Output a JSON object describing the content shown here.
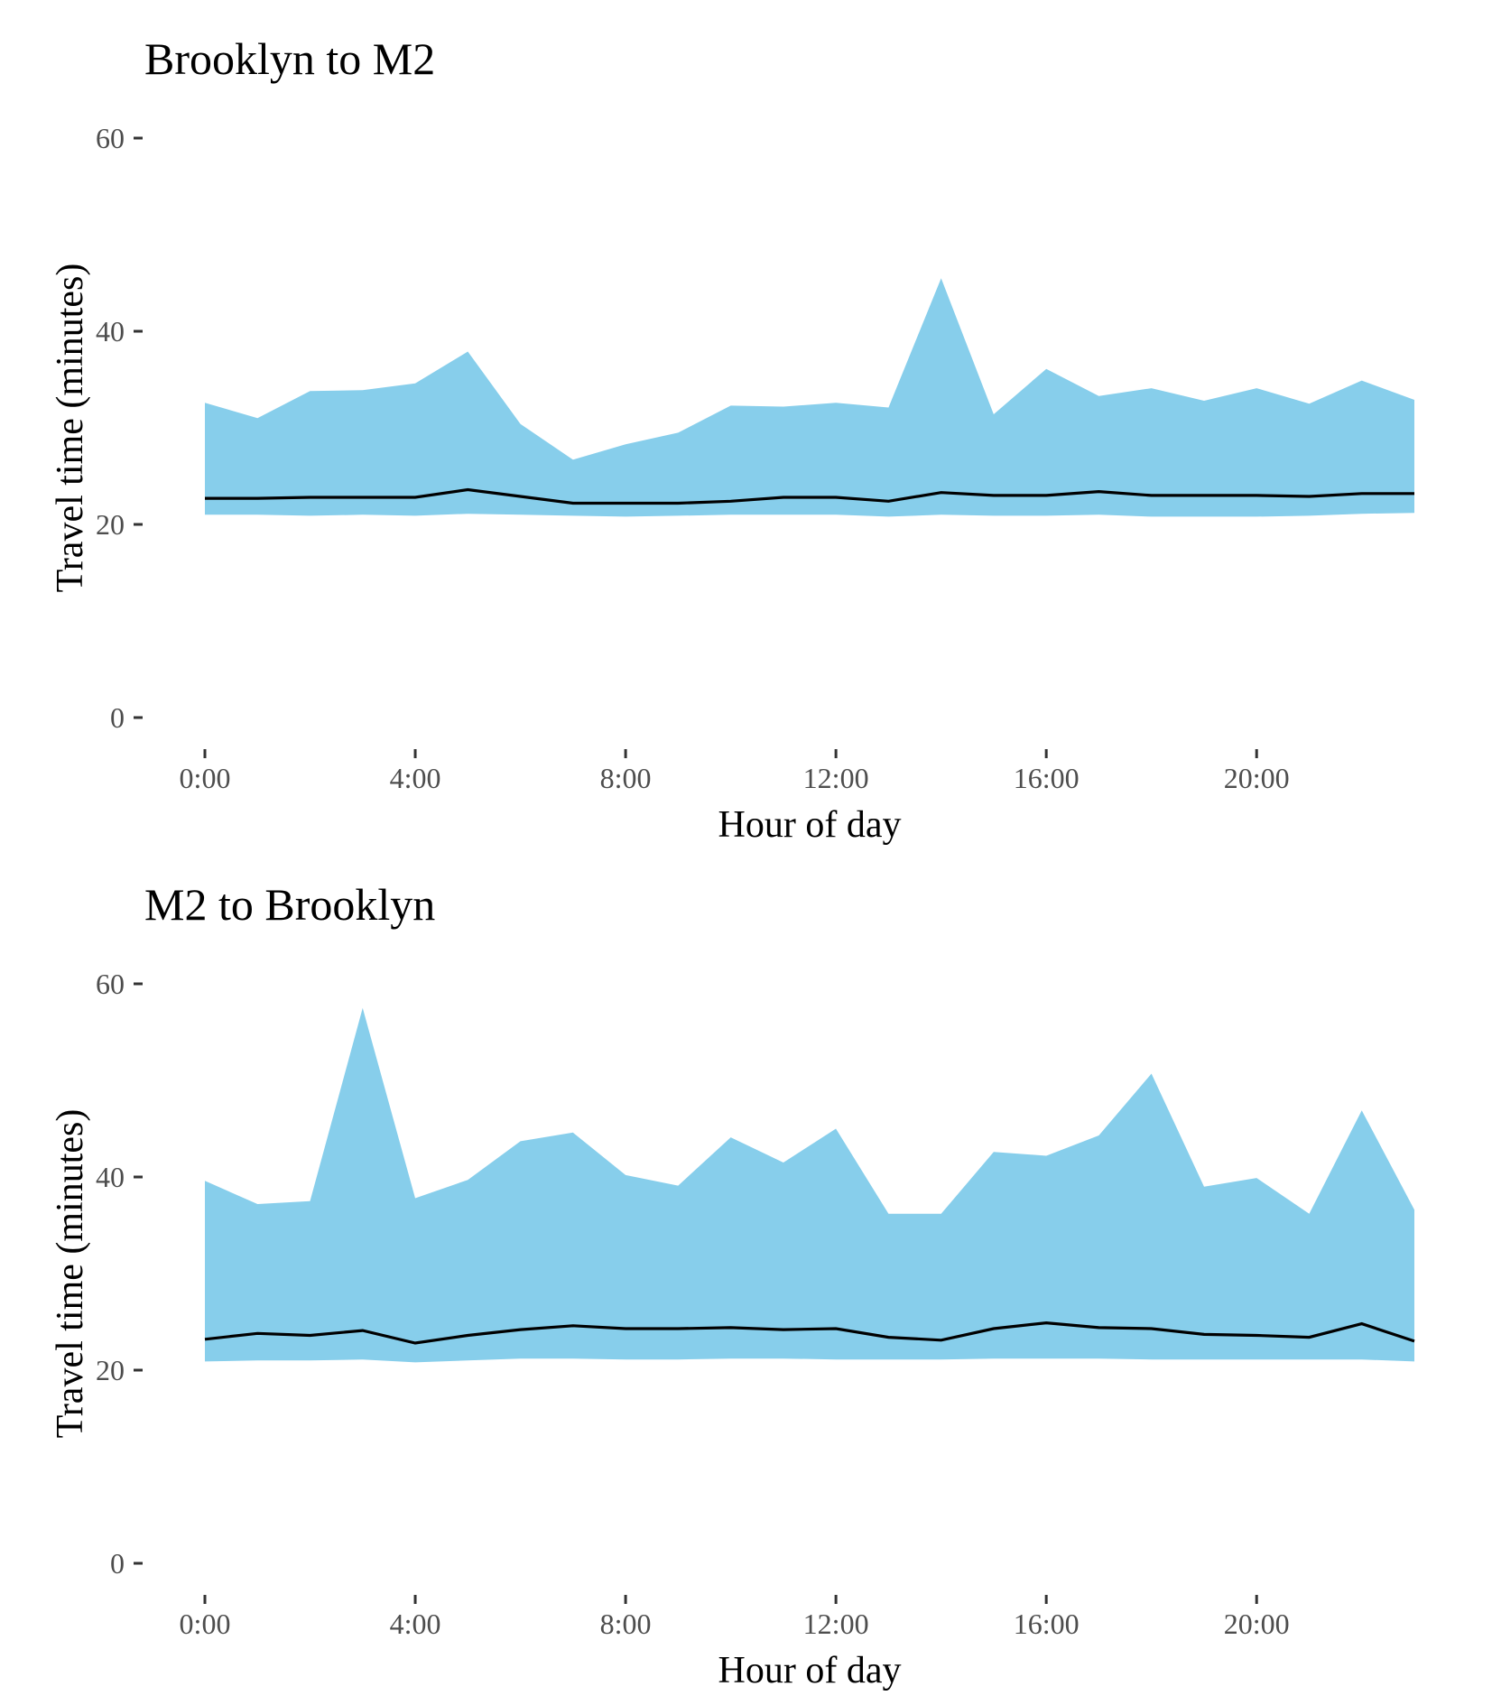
{
  "colors": {
    "ribbon": "#87CEEB",
    "median_line": "#000000",
    "tick_text": "#4D4D4D"
  },
  "chart_data": [
    {
      "type": "area",
      "title": "Brooklyn to M2",
      "xlabel": "Hour of day",
      "ylabel": "Travel time (minutes)",
      "x": [
        0,
        1,
        2,
        3,
        4,
        5,
        6,
        7,
        8,
        9,
        10,
        11,
        12,
        13,
        14,
        15,
        16,
        17,
        18,
        19,
        20,
        21,
        22,
        23
      ],
      "xticks": [
        0,
        4,
        8,
        12,
        16,
        20
      ],
      "xtick_labels": [
        "0:00",
        "4:00",
        "8:00",
        "12:00",
        "16:00",
        "20:00"
      ],
      "ylim": [
        0,
        60
      ],
      "yticks": [
        0,
        20,
        40,
        60
      ],
      "ytick_labels": [
        "0",
        "20",
        "40",
        "60"
      ],
      "grid": false,
      "legend": "none",
      "series": [
        {
          "role": "ribbon",
          "upper": [
            32.6,
            31.0,
            33.8,
            33.9,
            34.6,
            37.9,
            30.4,
            26.7,
            28.3,
            29.5,
            32.3,
            32.2,
            32.6,
            32.1,
            45.5,
            31.4,
            36.1,
            33.3,
            34.1,
            32.8,
            34.1,
            32.5,
            34.9,
            32.9
          ],
          "lower": [
            21.0,
            21.0,
            20.9,
            21.0,
            20.9,
            21.1,
            21.0,
            20.9,
            20.8,
            20.9,
            21.0,
            21.0,
            21.0,
            20.8,
            21.0,
            20.9,
            20.9,
            21.0,
            20.8,
            20.8,
            20.8,
            20.9,
            21.1,
            21.2
          ]
        },
        {
          "role": "line",
          "values": [
            22.7,
            22.7,
            22.8,
            22.8,
            22.8,
            23.6,
            22.9,
            22.2,
            22.2,
            22.2,
            22.4,
            22.8,
            22.8,
            22.4,
            23.3,
            23.0,
            23.0,
            23.4,
            23.0,
            23.0,
            23.0,
            22.9,
            23.2,
            23.2
          ]
        }
      ]
    },
    {
      "type": "area",
      "title": "M2 to Brooklyn",
      "xlabel": "Hour of day",
      "ylabel": "Travel time (minutes)",
      "x": [
        0,
        1,
        2,
        3,
        4,
        5,
        6,
        7,
        8,
        9,
        10,
        11,
        12,
        13,
        14,
        15,
        16,
        17,
        18,
        19,
        20,
        21,
        22,
        23
      ],
      "xticks": [
        0,
        4,
        8,
        12,
        16,
        20
      ],
      "xtick_labels": [
        "0:00",
        "4:00",
        "8:00",
        "12:00",
        "16:00",
        "20:00"
      ],
      "ylim": [
        0,
        60
      ],
      "yticks": [
        0,
        20,
        40,
        60
      ],
      "ytick_labels": [
        "0",
        "20",
        "40",
        "60"
      ],
      "grid": false,
      "legend": "none",
      "series": [
        {
          "role": "ribbon",
          "upper": [
            39.6,
            37.2,
            37.5,
            57.5,
            37.8,
            39.7,
            43.7,
            44.6,
            40.2,
            39.1,
            44.1,
            41.5,
            45.0,
            36.2,
            36.2,
            42.6,
            42.2,
            44.3,
            50.7,
            39.0,
            39.9,
            36.2,
            46.9,
            36.6
          ],
          "lower": [
            20.9,
            21.0,
            21.0,
            21.1,
            20.8,
            21.0,
            21.2,
            21.2,
            21.1,
            21.1,
            21.2,
            21.2,
            21.1,
            21.1,
            21.1,
            21.2,
            21.2,
            21.2,
            21.1,
            21.1,
            21.1,
            21.1,
            21.1,
            20.9
          ]
        },
        {
          "role": "line",
          "values": [
            23.2,
            23.8,
            23.6,
            24.1,
            22.8,
            23.6,
            24.2,
            24.6,
            24.3,
            24.3,
            24.4,
            24.2,
            24.3,
            23.4,
            23.1,
            24.3,
            24.9,
            24.4,
            24.3,
            23.7,
            23.6,
            23.4,
            24.8,
            23.0
          ]
        }
      ]
    }
  ]
}
